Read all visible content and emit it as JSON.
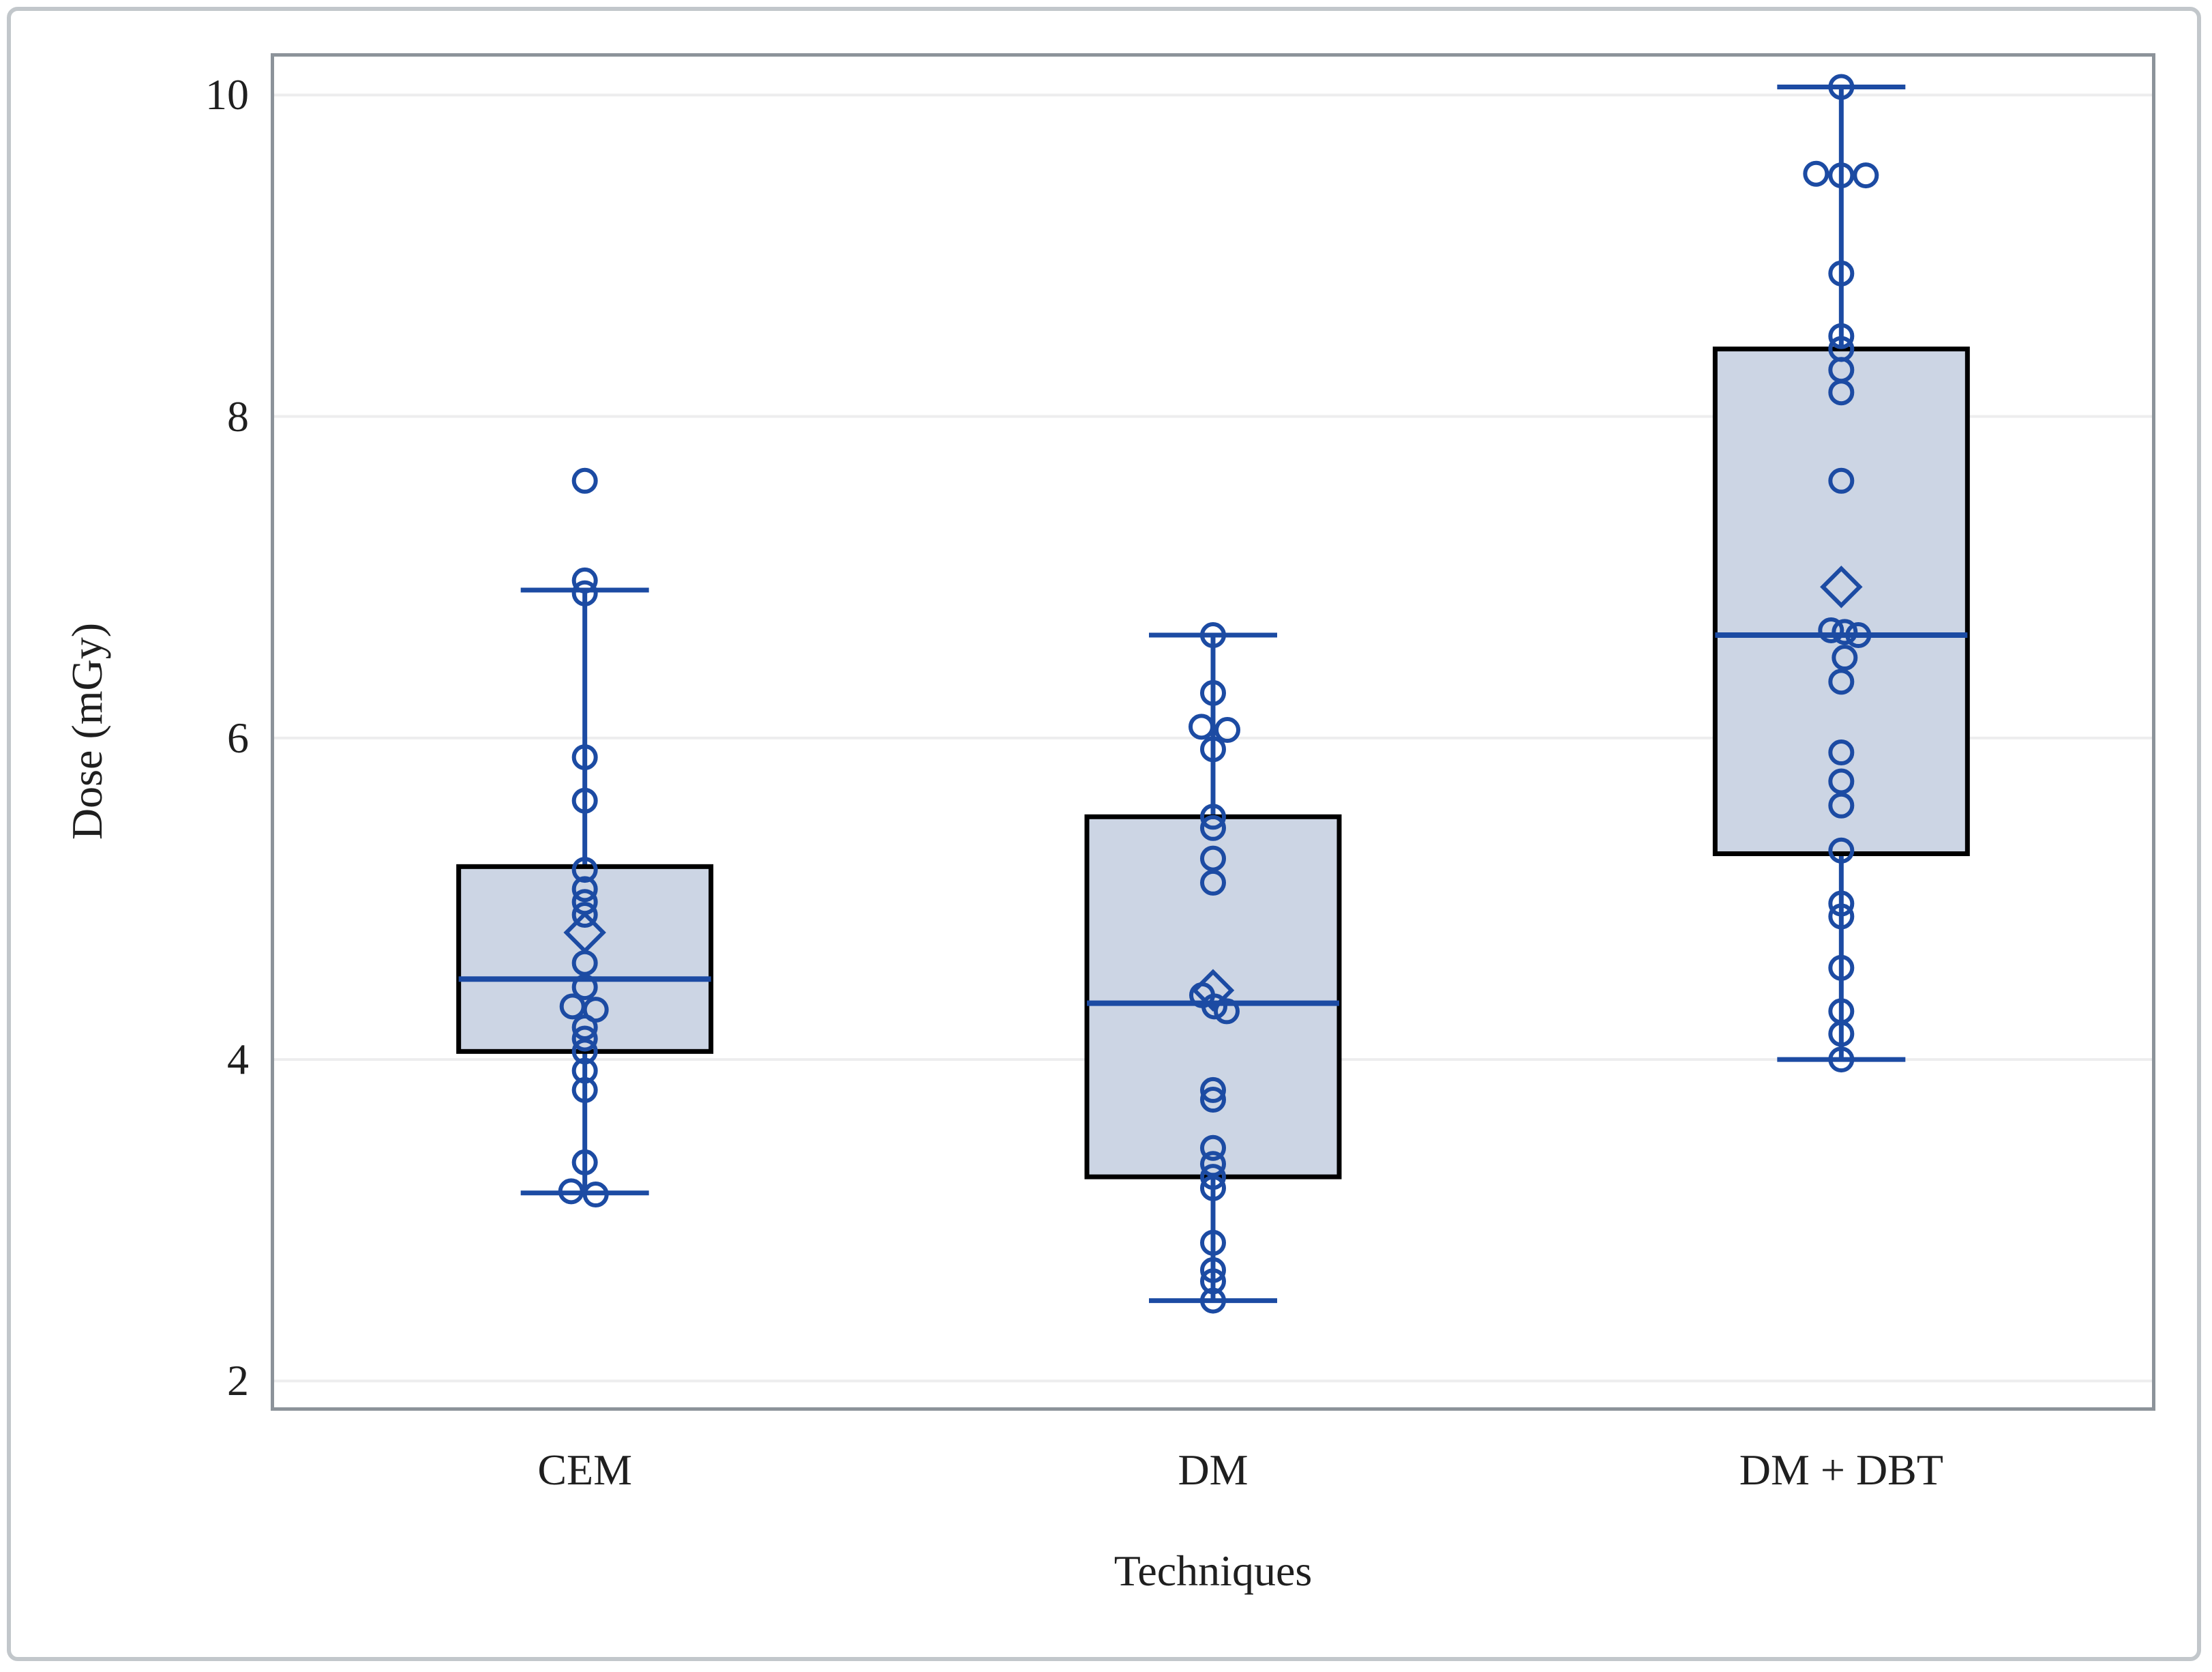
{
  "figure": {
    "y_axis_title": "Dose (mGy)",
    "x_axis_title": "Techniques",
    "colors": {
      "marker_blue": "#1c4ba3",
      "box_fill": "#ccd5e4",
      "box_border": "#000000",
      "gridline": "#ededee",
      "spine": "#8c939a",
      "figure_border": "#c2c7cb",
      "text": "#1f1f1f"
    }
  },
  "chart_data": {
    "type": "boxplot",
    "title": "",
    "xlabel": "Techniques",
    "ylabel": "Dose (mGy)",
    "ylim": [
      1.815,
      10.26
    ],
    "yticks": [
      2,
      4,
      6,
      8,
      10
    ],
    "ytick_labels": [
      "2",
      "4",
      "6",
      "8",
      "10"
    ],
    "grid": "horizontal",
    "legend_position": "none",
    "categories": [
      "CEM",
      "DM",
      "DM + DBT"
    ],
    "series": [
      {
        "name": "CEM",
        "whisker_low": 3.17,
        "q1": 4.05,
        "median": 4.5,
        "q3": 5.2,
        "whisker_high": 6.92,
        "mean": 4.79,
        "outliers": [
          7.6
        ],
        "points": [
          [
            7.6,
            0
          ],
          [
            6.98,
            0
          ],
          [
            6.9,
            0
          ],
          [
            5.88,
            0
          ],
          [
            5.61,
            0
          ],
          [
            5.18,
            0
          ],
          [
            5.06,
            0
          ],
          [
            4.98,
            0
          ],
          [
            4.9,
            0
          ],
          [
            4.6,
            0
          ],
          [
            4.45,
            0
          ],
          [
            4.33,
            -18
          ],
          [
            4.31,
            16
          ],
          [
            4.2,
            0
          ],
          [
            4.13,
            0
          ],
          [
            4.05,
            0
          ],
          [
            3.93,
            0
          ],
          [
            3.81,
            0
          ],
          [
            3.36,
            0
          ],
          [
            3.18,
            -20
          ],
          [
            3.16,
            16
          ]
        ]
      },
      {
        "name": "DM",
        "whisker_low": 2.5,
        "q1": 3.27,
        "median": 4.35,
        "q3": 5.51,
        "whisker_high": 6.64,
        "mean": 4.43,
        "outliers": [],
        "points": [
          [
            6.64,
            0
          ],
          [
            6.28,
            0
          ],
          [
            6.07,
            -17
          ],
          [
            6.05,
            21
          ],
          [
            5.93,
            0
          ],
          [
            5.51,
            0
          ],
          [
            5.44,
            0
          ],
          [
            5.25,
            0
          ],
          [
            5.1,
            0
          ],
          [
            4.4,
            -16
          ],
          [
            4.33,
            2
          ],
          [
            4.3,
            20
          ],
          [
            3.81,
            0
          ],
          [
            3.75,
            0
          ],
          [
            3.45,
            0
          ],
          [
            3.35,
            0
          ],
          [
            3.27,
            0
          ],
          [
            3.2,
            0
          ],
          [
            2.86,
            0
          ],
          [
            2.69,
            0
          ],
          [
            2.62,
            0
          ],
          [
            2.5,
            0
          ]
        ]
      },
      {
        "name": "DM + DBT",
        "whisker_low": 4.0,
        "q1": 5.28,
        "median": 6.64,
        "q3": 8.42,
        "whisker_high": 10.05,
        "mean": 6.94,
        "outliers": [],
        "points": [
          [
            10.05,
            0
          ],
          [
            9.51,
            -37
          ],
          [
            9.5,
            0
          ],
          [
            9.5,
            36
          ],
          [
            8.89,
            0
          ],
          [
            8.5,
            0
          ],
          [
            8.42,
            0
          ],
          [
            8.29,
            0
          ],
          [
            8.15,
            0
          ],
          [
            7.6,
            0
          ],
          [
            6.67,
            -15
          ],
          [
            6.66,
            5
          ],
          [
            6.64,
            25
          ],
          [
            6.5,
            5
          ],
          [
            6.35,
            0
          ],
          [
            5.91,
            0
          ],
          [
            5.73,
            0
          ],
          [
            5.58,
            0
          ],
          [
            5.3,
            0
          ],
          [
            4.97,
            0
          ],
          [
            4.89,
            0
          ],
          [
            4.57,
            0
          ],
          [
            4.3,
            0
          ],
          [
            4.16,
            0
          ],
          [
            4.0,
            0
          ]
        ]
      }
    ]
  }
}
